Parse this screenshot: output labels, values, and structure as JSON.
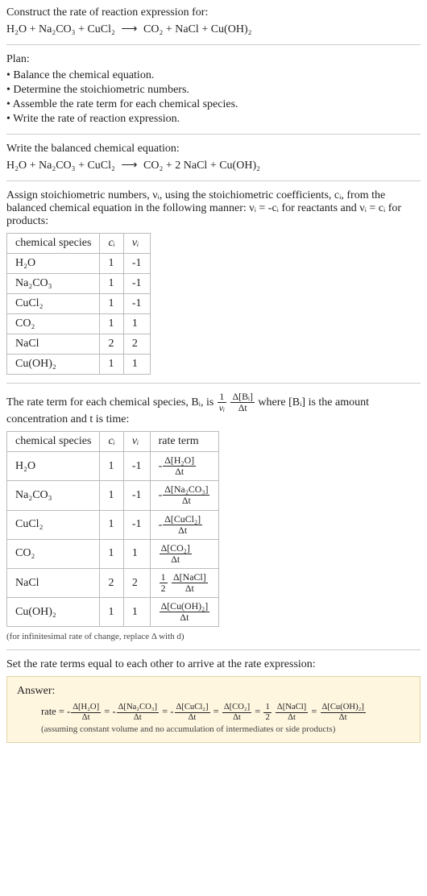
{
  "prompt": {
    "title": "Construct the rate of reaction expression for:",
    "reaction_lhs": [
      "H₂O",
      "Na₂CO₃",
      "CuCl₂"
    ],
    "reaction_rhs": [
      "CO₂",
      "NaCl",
      "Cu(OH)₂"
    ],
    "arrow": "⟶"
  },
  "plan": {
    "heading": "Plan:",
    "items": [
      "Balance the chemical equation.",
      "Determine the stoichiometric numbers.",
      "Assemble the rate term for each chemical species.",
      "Write the rate of reaction expression."
    ]
  },
  "balanced": {
    "heading": "Write the balanced chemical equation:",
    "lhs": [
      "H₂O",
      "Na₂CO₃",
      "CuCl₂"
    ],
    "rhs": [
      "CO₂",
      "2 NaCl",
      "Cu(OH)₂"
    ],
    "arrow": "⟶"
  },
  "stoich_text": {
    "lead": "Assign stoichiometric numbers, νᵢ, using the stoichiometric coefficients, cᵢ, from the balanced chemical equation in the following manner: νᵢ = -cᵢ for reactants and νᵢ = cᵢ for products:"
  },
  "table1": {
    "headers": [
      "chemical species",
      "cᵢ",
      "νᵢ"
    ],
    "rows": [
      [
        "H₂O",
        "1",
        "-1"
      ],
      [
        "Na₂CO₃",
        "1",
        "-1"
      ],
      [
        "CuCl₂",
        "1",
        "-1"
      ],
      [
        "CO₂",
        "1",
        "1"
      ],
      [
        "NaCl",
        "2",
        "2"
      ],
      [
        "Cu(OH)₂",
        "1",
        "1"
      ]
    ],
    "col_align": [
      "left",
      "center",
      "center"
    ]
  },
  "rate_term_text": {
    "before": "The rate term for each chemical species, Bᵢ, is ",
    "after": " where [Bᵢ] is the amount concentration and t is time:",
    "frac1_num": "1",
    "frac1_den": "νᵢ",
    "frac2_num": "Δ[Bᵢ]",
    "frac2_den": "Δt"
  },
  "table2": {
    "headers": [
      "chemical species",
      "cᵢ",
      "νᵢ",
      "rate term"
    ],
    "rows": [
      {
        "sp": "H₂O",
        "c": "1",
        "v": "-1",
        "sign": "-",
        "coef": "",
        "num": "Δ[H₂O]",
        "den": "Δt"
      },
      {
        "sp": "Na₂CO₃",
        "c": "1",
        "v": "-1",
        "sign": "-",
        "coef": "",
        "num": "Δ[Na₂CO₃]",
        "den": "Δt"
      },
      {
        "sp": "CuCl₂",
        "c": "1",
        "v": "-1",
        "sign": "-",
        "coef": "",
        "num": "Δ[CuCl₂]",
        "den": "Δt"
      },
      {
        "sp": "CO₂",
        "c": "1",
        "v": "1",
        "sign": "",
        "coef": "",
        "num": "Δ[CO₂]",
        "den": "Δt"
      },
      {
        "sp": "NaCl",
        "c": "2",
        "v": "2",
        "sign": "",
        "coef": "½",
        "coef_num": "1",
        "coef_den": "2",
        "num": "Δ[NaCl]",
        "den": "Δt"
      },
      {
        "sp": "Cu(OH)₂",
        "c": "1",
        "v": "1",
        "sign": "",
        "coef": "",
        "num": "Δ[Cu(OH)₂]",
        "den": "Δt"
      }
    ],
    "footnote": "(for infinitesimal rate of change, replace Δ with d)"
  },
  "final": {
    "heading": "Set the rate terms equal to each other to arrive at the rate expression:",
    "answer_label": "Answer:",
    "rate_prefix": "rate = ",
    "terms": [
      {
        "sign": "-",
        "coef_num": "",
        "coef_den": "",
        "num": "Δ[H₂O]",
        "den": "Δt"
      },
      {
        "sign": "-",
        "coef_num": "",
        "coef_den": "",
        "num": "Δ[Na₂CO₃]",
        "den": "Δt"
      },
      {
        "sign": "-",
        "coef_num": "",
        "coef_den": "",
        "num": "Δ[CuCl₂]",
        "den": "Δt"
      },
      {
        "sign": "",
        "coef_num": "",
        "coef_den": "",
        "num": "Δ[CO₂]",
        "den": "Δt"
      },
      {
        "sign": "",
        "coef_num": "1",
        "coef_den": "2",
        "num": "Δ[NaCl]",
        "den": "Δt"
      },
      {
        "sign": "",
        "coef_num": "",
        "coef_den": "",
        "num": "Δ[Cu(OH)₂]",
        "den": "Δt"
      }
    ],
    "note": "(assuming constant volume and no accumulation of intermediates or side products)"
  },
  "colors": {
    "hr": "#cccccc",
    "border": "#bbbbbb",
    "text": "#222222",
    "answer_bg": "#fff6e0",
    "answer_border": "#e0d4a8"
  }
}
